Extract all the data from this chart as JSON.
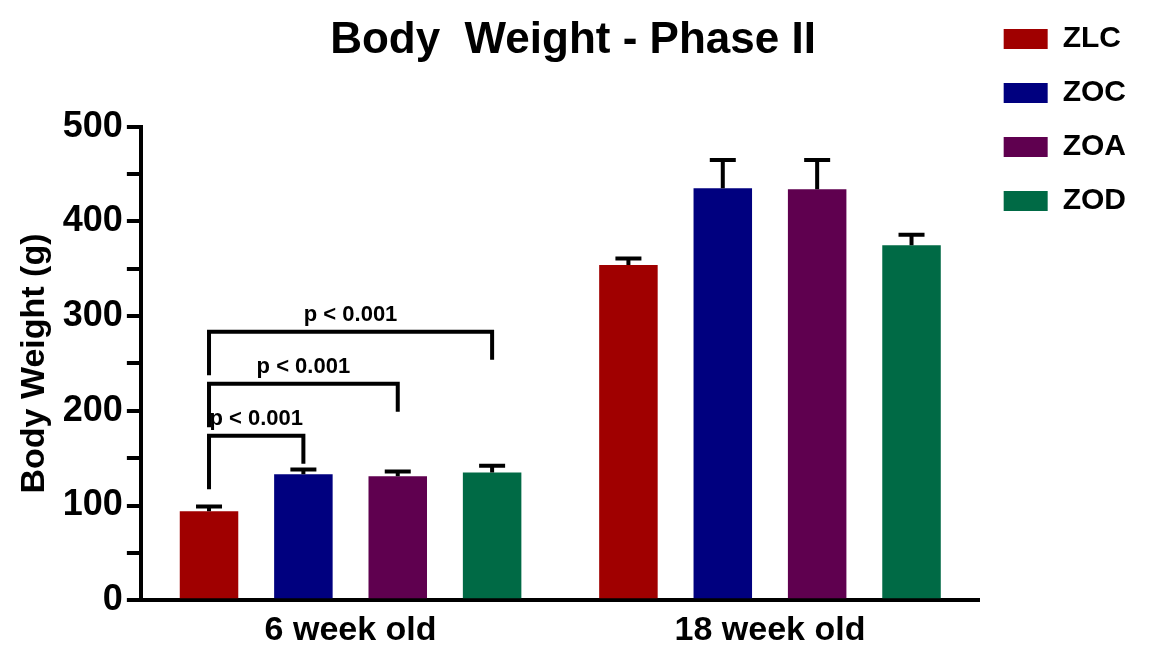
{
  "chart_data": {
    "type": "bar",
    "title": "Body  Weight - Phase II",
    "ylabel": "Body Weight (g)",
    "categories": [
      "6 week old",
      "18 week old"
    ],
    "series": [
      {
        "name": "ZLC",
        "color": "#a00000",
        "values": [
          94,
          354
        ],
        "errors": [
          5,
          7
        ]
      },
      {
        "name": "ZOC",
        "color": "#00007f",
        "values": [
          133,
          435
        ],
        "errors": [
          5,
          30
        ]
      },
      {
        "name": "ZOA",
        "color": "#5f004f",
        "values": [
          131,
          434
        ],
        "errors": [
          5,
          31
        ]
      },
      {
        "name": "ZOD",
        "color": "#006a45",
        "values": [
          135,
          375
        ],
        "errors": [
          7,
          11
        ]
      }
    ],
    "ylim": [
      0,
      500
    ],
    "yticks": [
      0,
      {
        "value": 50,
        "label": null
      },
      100,
      {
        "value": 150,
        "label": null
      },
      200,
      {
        "value": 250,
        "label": null
      },
      300,
      {
        "value": 350,
        "label": null
      },
      400,
      {
        "value": 450,
        "label": null
      },
      500
    ],
    "grid": false,
    "legend": "right",
    "annotations": [
      "p < 0.001",
      "p < 0.001",
      "p < 0.001"
    ]
  }
}
